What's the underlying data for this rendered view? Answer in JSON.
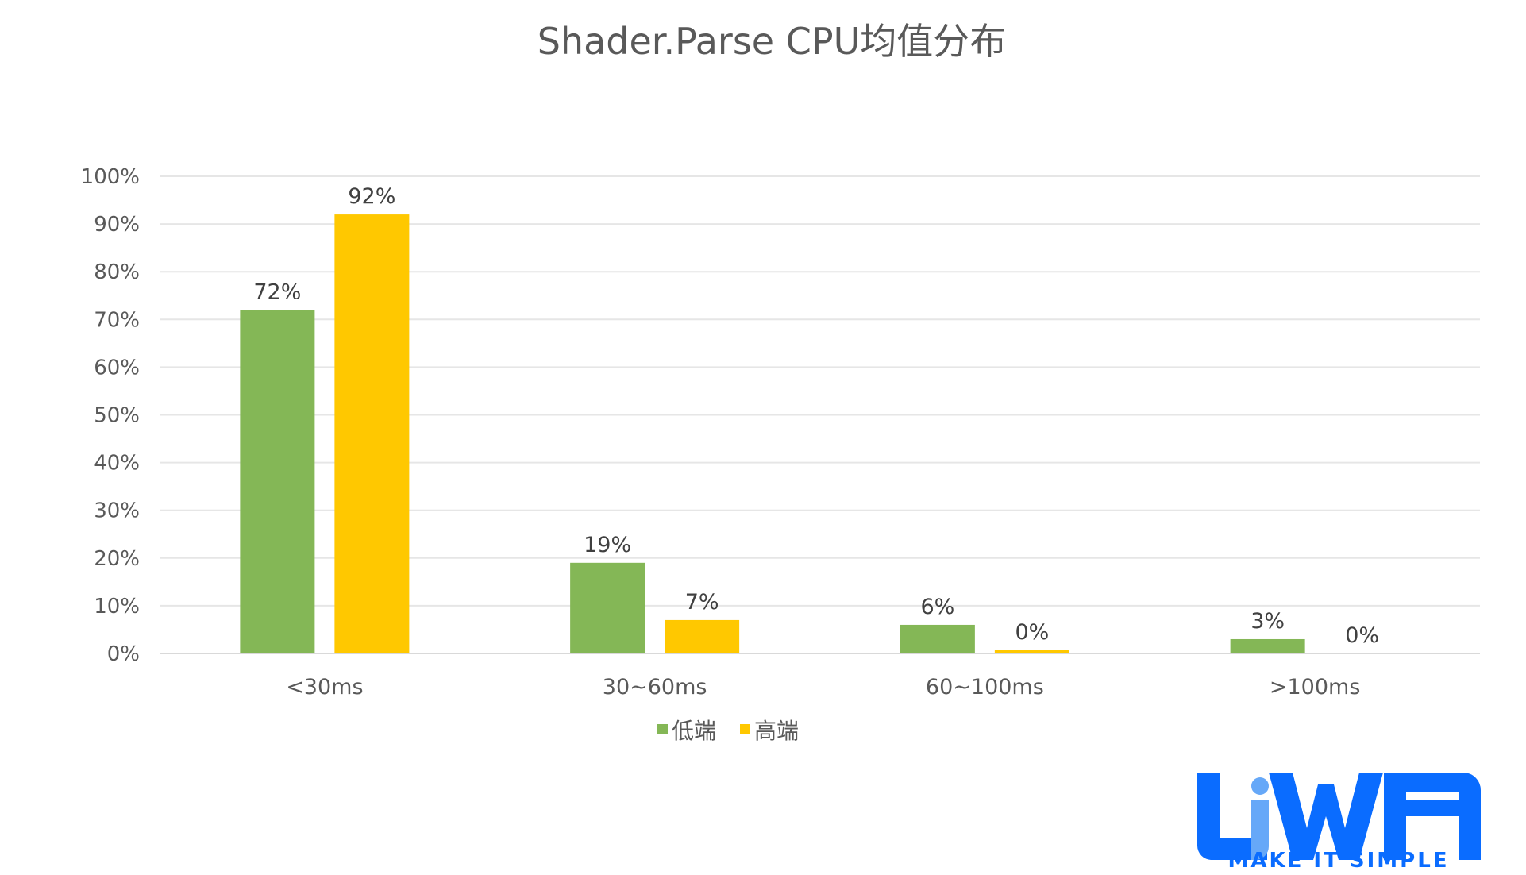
{
  "chart_data": {
    "type": "bar",
    "title": "Shader.Parse CPU均值分布",
    "categories": [
      "<30ms",
      "30~60ms",
      "60~100ms",
      ">100ms"
    ],
    "series": [
      {
        "name": "低端",
        "color": "#84B756",
        "values": [
          72,
          19,
          6,
          3
        ],
        "labels": [
          "72%",
          "19%",
          "6%",
          "3%"
        ]
      },
      {
        "name": "高端",
        "color": "#FFC800",
        "values": [
          92,
          7,
          0,
          0
        ],
        "labels": [
          "92%",
          "7%",
          "0%",
          "0%"
        ]
      }
    ],
    "ylim": [
      0,
      100
    ],
    "yticks": [
      "0%",
      "10%",
      "20%",
      "30%",
      "40%",
      "50%",
      "60%",
      "70%",
      "80%",
      "90%",
      "100%"
    ],
    "grid": true,
    "legend": "bottom"
  },
  "logo": {
    "text": "LiWA",
    "tagline": "MAKE IT SIMPLE",
    "color": "#0A6CFF"
  }
}
